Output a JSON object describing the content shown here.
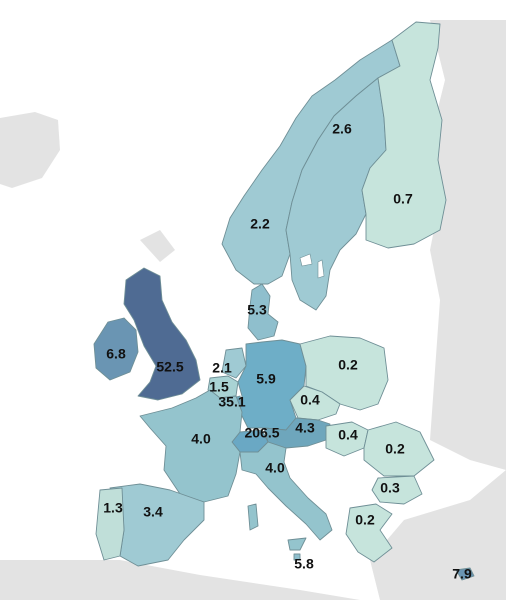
{
  "legend_colors": {
    "very_low": "#c6e4dc",
    "low": "#a9d3d4",
    "mid": "#8cc0cb",
    "high": "#6ea6bc",
    "very_high": "#4f6b93"
  },
  "countries": [
    {
      "name": "Norway",
      "value": "2.2",
      "color": "#9fcad3"
    },
    {
      "name": "Sweden",
      "value": "2.6",
      "color": "#9fcad3"
    },
    {
      "name": "Finland",
      "value": "0.7",
      "color": "#c6e4dc"
    },
    {
      "name": "Denmark",
      "value": "5.3",
      "color": "#8fbfcd"
    },
    {
      "name": "Ireland",
      "value": "6.8",
      "color": "#6a95b3"
    },
    {
      "name": "United Kingdom",
      "value": "52.5",
      "color": "#4f6b93"
    },
    {
      "name": "Netherlands",
      "value": "2.1",
      "color": "#9fcad3"
    },
    {
      "name": "Belgium",
      "value": "1.5",
      "color": "#a9d3d4"
    },
    {
      "name": "Luxembourg",
      "value": "35.1",
      "color": "#6ea6bc"
    },
    {
      "name": "Germany",
      "value": "5.9",
      "color": "#6eaec7"
    },
    {
      "name": "Poland",
      "value": "0.2",
      "color": "#c6e4dc"
    },
    {
      "name": "Czechia",
      "value": "0.4",
      "color": "#c6e4dc"
    },
    {
      "name": "Austria",
      "value": "4.3",
      "color": "#6ea6bc"
    },
    {
      "name": "Switzerland",
      "value": "206.5",
      "color": "#6aa8c4"
    },
    {
      "name": "Hungary",
      "value": "0.4",
      "color": "#c6e4dc"
    },
    {
      "name": "Romania",
      "value": "0.2",
      "color": "#c6e4dc"
    },
    {
      "name": "Bulgaria",
      "value": "0.3",
      "color": "#c6e4dc"
    },
    {
      "name": "Greece",
      "value": "0.2",
      "color": "#c6e4dc"
    },
    {
      "name": "France",
      "value": "4.0",
      "color": "#94c4cd"
    },
    {
      "name": "Italy",
      "value": "4.0",
      "color": "#94c4cd"
    },
    {
      "name": "Spain",
      "value": "3.4",
      "color": "#9fcad3"
    },
    {
      "name": "Portugal",
      "value": "1.3",
      "color": "#c0dfd9"
    },
    {
      "name": "Malta",
      "value": "5.8",
      "color": "#8fbfcd"
    },
    {
      "name": "Cyprus",
      "value": "7.9",
      "color": "#6a95b3"
    }
  ]
}
